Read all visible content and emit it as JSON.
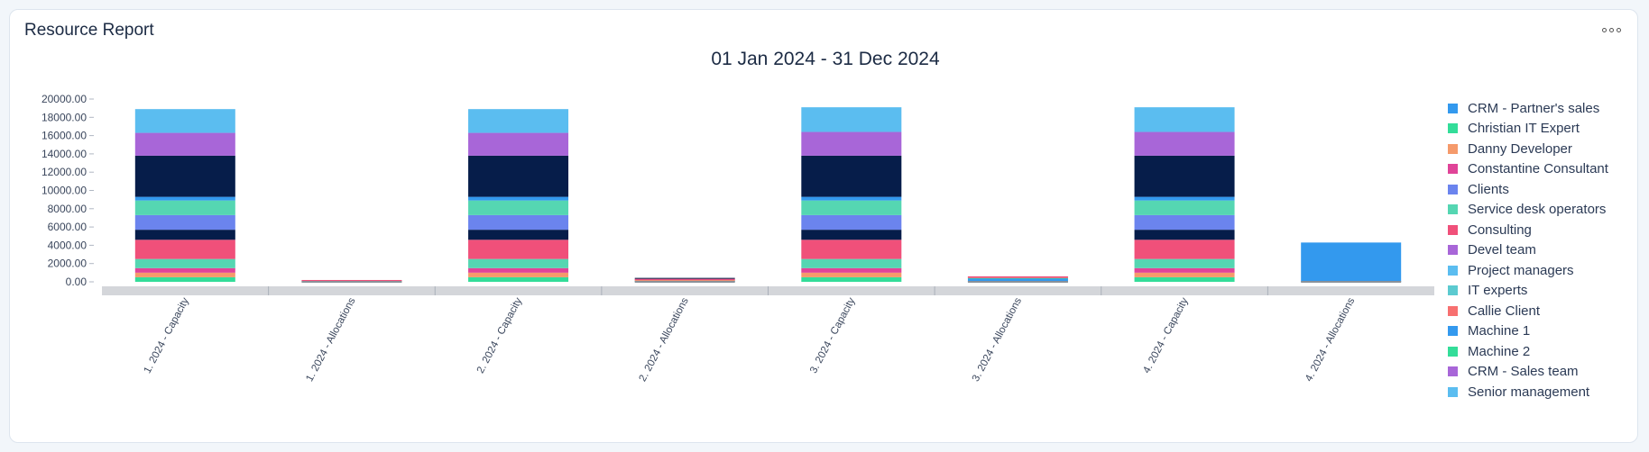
{
  "card": {
    "title": "Resource Report"
  },
  "menu": {
    "icon": "more-dots-icon"
  },
  "chart_data": {
    "type": "bar",
    "stacked": true,
    "title": "01 Jan 2024 - 31 Dec 2024",
    "xlabel": "",
    "ylabel": "",
    "ylim": [
      0,
      20000
    ],
    "yticks": [
      "0.00",
      "2000.00",
      "4000.00",
      "6000.00",
      "8000.00",
      "10000.00",
      "12000.00",
      "14000.00",
      "16000.00",
      "18000.00",
      "20000.00"
    ],
    "grid": false,
    "legend_position": "right",
    "categories": [
      "1. 2024 - Capacity",
      "1. 2024 - Allocations",
      "2. 2024 - Capacity",
      "2. 2024 - Allocations",
      "3. 2024 - Capacity",
      "3. 2024 - Allocations",
      "4. 2024 - Capacity",
      "4. 2024 - Allocations"
    ],
    "series": [
      {
        "name": "CRM - Partner's sales",
        "color": "#3399ee",
        "values": [
          0,
          0,
          0,
          100,
          0,
          400,
          0,
          4300
        ]
      },
      {
        "name": "Christian IT Expert",
        "color": "#33dd99",
        "values": [
          500,
          50,
          500,
          50,
          500,
          50,
          500,
          0
        ]
      },
      {
        "name": "Danny Developer",
        "color": "#f59a6b",
        "values": [
          500,
          50,
          500,
          50,
          500,
          50,
          500,
          0
        ]
      },
      {
        "name": "Constantine Consultant",
        "color": "#e04498",
        "values": [
          500,
          50,
          500,
          80,
          500,
          50,
          500,
          0
        ]
      },
      {
        "name": "Clients",
        "color": "#6b84ee",
        "values": [
          0,
          0,
          0,
          0,
          0,
          0,
          0,
          0
        ]
      },
      {
        "name": "Service desk operators",
        "color": "#55d6b2",
        "values": [
          1000,
          0,
          1000,
          0,
          1000,
          0,
          1000,
          0
        ]
      },
      {
        "name": "Consulting",
        "color": "#f0507a",
        "values": [
          2100,
          50,
          2100,
          50,
          2100,
          50,
          2100,
          0
        ]
      },
      {
        "name": "Devel team",
        "color": "#061d4a",
        "values": [
          1100,
          0,
          1100,
          100,
          1100,
          0,
          1100,
          0
        ]
      },
      {
        "name": "Project managers",
        "color": "#6b84ee",
        "values": [
          1600,
          0,
          1600,
          0,
          1600,
          0,
          1600,
          0
        ]
      },
      {
        "name": "IT experts",
        "color": "#55d6b2",
        "values": [
          1600,
          0,
          1600,
          0,
          1600,
          0,
          1600,
          0
        ]
      },
      {
        "name": "Callie Client",
        "color": "#3399ee",
        "values": [
          400,
          0,
          400,
          0,
          400,
          0,
          400,
          0
        ]
      },
      {
        "name": "Machine 1",
        "color": "#061d4a",
        "values": [
          4500,
          0,
          4500,
          0,
          4500,
          0,
          4500,
          0
        ]
      },
      {
        "name": "Machine 2",
        "color": "#a866d8",
        "values": [
          2500,
          0,
          2500,
          0,
          2600,
          0,
          2600,
          0
        ]
      },
      {
        "name": "CRM - Sales team",
        "color": "#a866d8",
        "values": [
          0,
          0,
          0,
          0,
          0,
          0,
          0,
          0
        ]
      },
      {
        "name": "Senior management",
        "color": "#5bbdf0",
        "values": [
          2600,
          0,
          2600,
          0,
          2700,
          0,
          2700,
          0
        ]
      }
    ],
    "legend": [
      {
        "name": "CRM - Partner's sales",
        "color": "#3399ee"
      },
      {
        "name": "Christian IT Expert",
        "color": "#33dd99"
      },
      {
        "name": "Danny Developer",
        "color": "#f59a6b"
      },
      {
        "name": "Constantine Consultant",
        "color": "#e04498"
      },
      {
        "name": "Clients",
        "color": "#6b84ee"
      },
      {
        "name": "Service desk operators",
        "color": "#55d6b2"
      },
      {
        "name": "Consulting",
        "color": "#f0507a"
      },
      {
        "name": "Devel team",
        "color": "#a866d8"
      },
      {
        "name": "Project managers",
        "color": "#5bbdf0"
      },
      {
        "name": "IT experts",
        "color": "#5ccad0"
      },
      {
        "name": "Callie Client",
        "color": "#f77070"
      },
      {
        "name": "Machine 1",
        "color": "#3399ee"
      },
      {
        "name": "Machine 2",
        "color": "#33dd99"
      },
      {
        "name": "CRM - Sales team",
        "color": "#a866d8"
      },
      {
        "name": "Senior management",
        "color": "#5bbdf0"
      }
    ]
  }
}
